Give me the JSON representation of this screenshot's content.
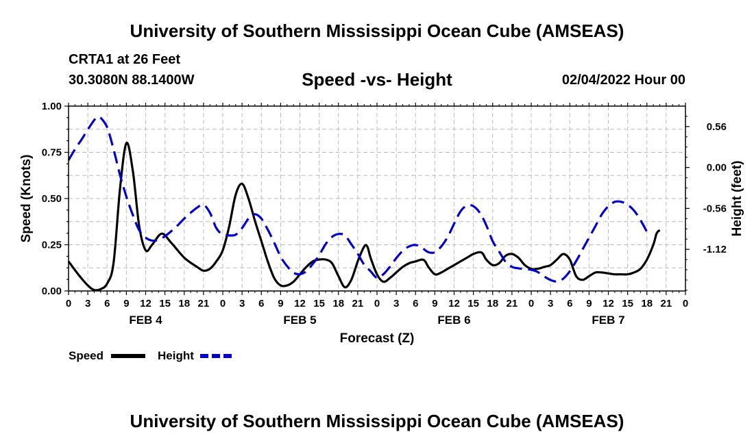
{
  "header": {
    "title": "University of Southern Mississippi Ocean Cube (AMSEAS)",
    "station": "CRTA1 at 26 Feet",
    "coords": "30.3080N  88.1400W",
    "subtitle": "Speed -vs- Height",
    "datetime": "02/04/2022 Hour 00"
  },
  "footer": {
    "title": "University of Southern Mississippi Ocean Cube (AMSEAS)"
  },
  "chart_data": {
    "type": "line",
    "xlabel": "Forecast (Z)",
    "ylabel_left": "Speed (Knots)",
    "ylabel_right": "Height (feet)",
    "x_unit": "forecast hour",
    "xlim": [
      0,
      96
    ],
    "ylim_left": [
      0,
      1.0
    ],
    "ylim_right": [
      -1.69,
      0.84
    ],
    "left_ticks": [
      0.0,
      0.25,
      0.5,
      0.75,
      1.0
    ],
    "left_tick_labels": [
      "0.00",
      "0.25",
      "0.50",
      "0.75",
      "1.00"
    ],
    "right_ticks": [
      0.56,
      0.0,
      -0.56,
      -1.12
    ],
    "right_tick_labels": [
      "0.56",
      "0.00",
      "-0.56",
      "-1.12"
    ],
    "x_tick_labels": [
      "0",
      "3",
      "6",
      "9",
      "12",
      "15",
      "18",
      "21",
      "0",
      "3",
      "6",
      "9",
      "12",
      "15",
      "18",
      "21",
      "0",
      "3",
      "6",
      "9",
      "12",
      "15",
      "18",
      "21",
      "0",
      "3",
      "6",
      "9",
      "12",
      "15",
      "18",
      "21",
      "0"
    ],
    "day_labels": [
      {
        "text": "FEB 4",
        "hour": 12
      },
      {
        "text": "FEB 5",
        "hour": 36
      },
      {
        "text": "FEB 6",
        "hour": 60
      },
      {
        "text": "FEB 7",
        "hour": 84
      }
    ],
    "grid": true,
    "series": [
      {
        "name": "Speed",
        "axis": "left",
        "color": "#000000",
        "dash": "solid",
        "points": [
          [
            0,
            0.16
          ],
          [
            1.5,
            0.09
          ],
          [
            3,
            0.03
          ],
          [
            4,
            0.005
          ],
          [
            5,
            0.01
          ],
          [
            6,
            0.04
          ],
          [
            7,
            0.15
          ],
          [
            8,
            0.55
          ],
          [
            9,
            0.8
          ],
          [
            10,
            0.65
          ],
          [
            11,
            0.35
          ],
          [
            12,
            0.22
          ],
          [
            13,
            0.25
          ],
          [
            14.5,
            0.31
          ],
          [
            16,
            0.26
          ],
          [
            18,
            0.18
          ],
          [
            20,
            0.13
          ],
          [
            21,
            0.11
          ],
          [
            22,
            0.12
          ],
          [
            23,
            0.16
          ],
          [
            24,
            0.22
          ],
          [
            25,
            0.35
          ],
          [
            26,
            0.52
          ],
          [
            27,
            0.58
          ],
          [
            28,
            0.5
          ],
          [
            29,
            0.38
          ],
          [
            30,
            0.27
          ],
          [
            31,
            0.16
          ],
          [
            32,
            0.07
          ],
          [
            33,
            0.03
          ],
          [
            34,
            0.03
          ],
          [
            35,
            0.05
          ],
          [
            36,
            0.09
          ],
          [
            37,
            0.13
          ],
          [
            38,
            0.16
          ],
          [
            39,
            0.17
          ],
          [
            40,
            0.17
          ],
          [
            41,
            0.15
          ],
          [
            42,
            0.08
          ],
          [
            43,
            0.02
          ],
          [
            44,
            0.06
          ],
          [
            45,
            0.16
          ],
          [
            46,
            0.24
          ],
          [
            46.5,
            0.24
          ],
          [
            47,
            0.18
          ],
          [
            48,
            0.09
          ],
          [
            49,
            0.05
          ],
          [
            50,
            0.07
          ],
          [
            51,
            0.1
          ],
          [
            52,
            0.13
          ],
          [
            53,
            0.15
          ],
          [
            54,
            0.16
          ],
          [
            55,
            0.17
          ],
          [
            55.5,
            0.16
          ],
          [
            56,
            0.13
          ],
          [
            57,
            0.09
          ],
          [
            58,
            0.1
          ],
          [
            59,
            0.12
          ],
          [
            60,
            0.14
          ],
          [
            61,
            0.16
          ],
          [
            62,
            0.18
          ],
          [
            63,
            0.2
          ],
          [
            64,
            0.21
          ],
          [
            64.5,
            0.2
          ],
          [
            65,
            0.17
          ],
          [
            66,
            0.14
          ],
          [
            67,
            0.15
          ],
          [
            68,
            0.19
          ],
          [
            69,
            0.2
          ],
          [
            70,
            0.18
          ],
          [
            71,
            0.14
          ],
          [
            72,
            0.12
          ],
          [
            73,
            0.12
          ],
          [
            74,
            0.13
          ],
          [
            75,
            0.14
          ],
          [
            76,
            0.17
          ],
          [
            77,
            0.2
          ],
          [
            78,
            0.17
          ],
          [
            79,
            0.08
          ],
          [
            80,
            0.06
          ],
          [
            81,
            0.08
          ],
          [
            82,
            0.1
          ],
          [
            83,
            0.1
          ],
          [
            84,
            0.095
          ],
          [
            85,
            0.09
          ],
          [
            86,
            0.09
          ],
          [
            87,
            0.09
          ],
          [
            88,
            0.1
          ],
          [
            89,
            0.12
          ],
          [
            90,
            0.17
          ],
          [
            91,
            0.25
          ],
          [
            91.5,
            0.31
          ],
          [
            92,
            0.33
          ]
        ]
      },
      {
        "name": "Height",
        "axis": "right",
        "color": "#0000cc",
        "dash": "dashed",
        "points": [
          [
            0,
            0.1
          ],
          [
            1,
            0.25
          ],
          [
            2,
            0.38
          ],
          [
            3,
            0.52
          ],
          [
            4,
            0.65
          ],
          [
            4.5,
            0.69
          ],
          [
            5,
            0.68
          ],
          [
            6,
            0.55
          ],
          [
            7,
            0.25
          ],
          [
            8,
            -0.1
          ],
          [
            9,
            -0.4
          ],
          [
            10,
            -0.65
          ],
          [
            11,
            -0.86
          ],
          [
            12,
            -0.96
          ],
          [
            13,
            -1.0
          ],
          [
            14,
            -0.99
          ],
          [
            15,
            -0.94
          ],
          [
            16,
            -0.87
          ],
          [
            17,
            -0.79
          ],
          [
            18,
            -0.7
          ],
          [
            19,
            -0.62
          ],
          [
            20,
            -0.55
          ],
          [
            21,
            -0.51
          ],
          [
            22,
            -0.62
          ],
          [
            23,
            -0.83
          ],
          [
            24,
            -0.92
          ],
          [
            25,
            -0.93
          ],
          [
            26,
            -0.92
          ],
          [
            27,
            -0.83
          ],
          [
            28,
            -0.7
          ],
          [
            29,
            -0.64
          ],
          [
            30,
            -0.7
          ],
          [
            31,
            -0.85
          ],
          [
            32,
            -1.03
          ],
          [
            33,
            -1.22
          ],
          [
            34,
            -1.35
          ],
          [
            35,
            -1.44
          ],
          [
            36,
            -1.46
          ],
          [
            37,
            -1.42
          ],
          [
            38,
            -1.32
          ],
          [
            39,
            -1.2
          ],
          [
            40,
            -1.05
          ],
          [
            41,
            -0.95
          ],
          [
            42,
            -0.91
          ],
          [
            43,
            -0.93
          ],
          [
            44,
            -1.05
          ],
          [
            45,
            -1.18
          ],
          [
            46,
            -1.33
          ],
          [
            47,
            -1.42
          ],
          [
            48,
            -1.51
          ],
          [
            49,
            -1.46
          ],
          [
            50,
            -1.36
          ],
          [
            51,
            -1.24
          ],
          [
            52,
            -1.14
          ],
          [
            53,
            -1.08
          ],
          [
            54,
            -1.06
          ],
          [
            55,
            -1.1
          ],
          [
            56,
            -1.16
          ],
          [
            57,
            -1.16
          ],
          [
            58,
            -1.08
          ],
          [
            59,
            -0.95
          ],
          [
            60,
            -0.77
          ],
          [
            61,
            -0.6
          ],
          [
            62,
            -0.52
          ],
          [
            63,
            -0.53
          ],
          [
            64,
            -0.62
          ],
          [
            65,
            -0.79
          ],
          [
            66,
            -1.01
          ],
          [
            67,
            -1.15
          ],
          [
            68,
            -1.29
          ],
          [
            69,
            -1.36
          ],
          [
            70,
            -1.38
          ],
          [
            71,
            -1.39
          ],
          [
            72,
            -1.4
          ],
          [
            73,
            -1.43
          ],
          [
            74,
            -1.49
          ],
          [
            75,
            -1.54
          ],
          [
            76,
            -1.56
          ],
          [
            77,
            -1.52
          ],
          [
            78,
            -1.42
          ],
          [
            79,
            -1.28
          ],
          [
            80,
            -1.12
          ],
          [
            81,
            -0.96
          ],
          [
            82,
            -0.8
          ],
          [
            83,
            -0.64
          ],
          [
            84,
            -0.53
          ],
          [
            85,
            -0.47
          ],
          [
            86,
            -0.47
          ],
          [
            87,
            -0.51
          ],
          [
            88,
            -0.59
          ],
          [
            89,
            -0.72
          ],
          [
            90,
            -0.88
          ]
        ]
      }
    ],
    "legend": [
      {
        "label": "Speed",
        "color": "#000000",
        "dash": "solid"
      },
      {
        "label": "Height",
        "color": "#0000cc",
        "dash": "dashed"
      }
    ],
    "legend_position": "bottom-left"
  }
}
